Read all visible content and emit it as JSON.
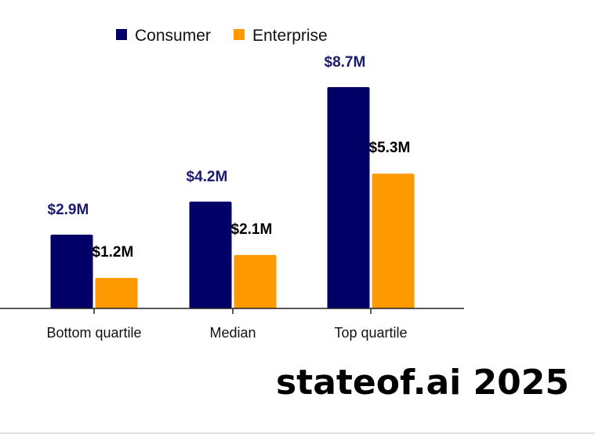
{
  "chart_data": {
    "type": "bar",
    "title": "",
    "categories": [
      "Bottom quartile",
      "Median",
      "Top quartile"
    ],
    "series": [
      {
        "name": "Consumer",
        "color": "#000066",
        "label_color": "#1a1a6e",
        "values": [
          2.9,
          4.2,
          8.7
        ],
        "labels": [
          "$2.9M",
          "$4.2M",
          "$8.7M"
        ]
      },
      {
        "name": "Enterprise",
        "color": "#ff9900",
        "label_color": "#000000",
        "values": [
          1.2,
          2.1,
          5.3
        ],
        "labels": [
          "$1.2M",
          "$2.1M",
          "$5.3M"
        ]
      }
    ],
    "xlabel": "",
    "ylabel": "",
    "ylim": [
      0,
      8.7
    ],
    "legend_position": "top"
  },
  "brand": {
    "text": "stateof.ai 2025"
  }
}
